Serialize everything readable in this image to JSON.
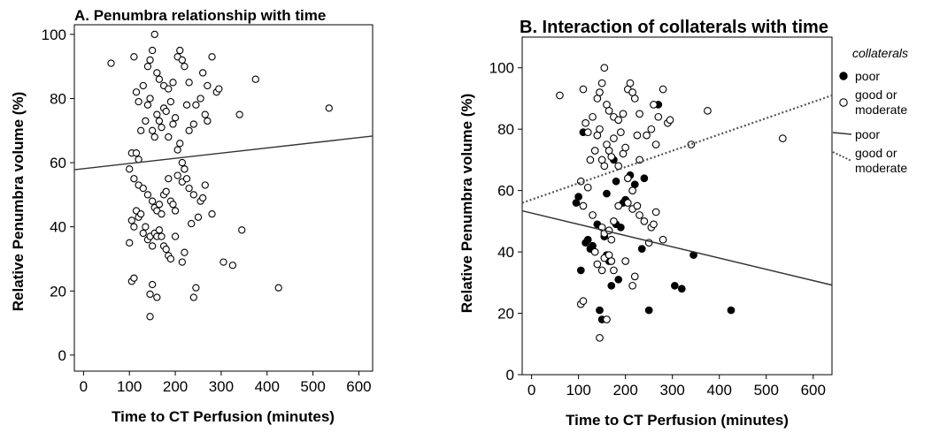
{
  "chart_data": [
    {
      "type": "scatter",
      "title": "A. Penumbra relationship with time",
      "xlabel": "Time to CT Perfusion (minutes)",
      "ylabel": "Relative Penumbra volume (%)",
      "xlim": [
        -20,
        630
      ],
      "ylim": [
        -5,
        103
      ],
      "xticks": [
        0,
        100,
        200,
        300,
        400,
        500,
        600
      ],
      "yticks": [
        0,
        20,
        40,
        60,
        80,
        100
      ],
      "grid": false,
      "points": [
        [
          60,
          91
        ],
        [
          110,
          93
        ],
        [
          115,
          82
        ],
        [
          120,
          79
        ],
        [
          130,
          84
        ],
        [
          140,
          90
        ],
        [
          145,
          92
        ],
        [
          150,
          95
        ],
        [
          155,
          100
        ],
        [
          160,
          88
        ],
        [
          165,
          86
        ],
        [
          175,
          84
        ],
        [
          185,
          83
        ],
        [
          195,
          85
        ],
        [
          205,
          93
        ],
        [
          210,
          95
        ],
        [
          215,
          92
        ],
        [
          220,
          90
        ],
        [
          230,
          85
        ],
        [
          260,
          88
        ],
        [
          270,
          84
        ],
        [
          280,
          93
        ],
        [
          290,
          82
        ],
        [
          295,
          83
        ],
        [
          375,
          86
        ],
        [
          340,
          75
        ],
        [
          535,
          77
        ],
        [
          100,
          58
        ],
        [
          105,
          63
        ],
        [
          115,
          63
        ],
        [
          120,
          61
        ],
        [
          125,
          70
        ],
        [
          135,
          73
        ],
        [
          140,
          78
        ],
        [
          145,
          80
        ],
        [
          150,
          70
        ],
        [
          155,
          68
        ],
        [
          160,
          75
        ],
        [
          165,
          73
        ],
        [
          170,
          71
        ],
        [
          175,
          77
        ],
        [
          180,
          76
        ],
        [
          185,
          68
        ],
        [
          190,
          79
        ],
        [
          195,
          72
        ],
        [
          200,
          74
        ],
        [
          205,
          64
        ],
        [
          210,
          66
        ],
        [
          215,
          60
        ],
        [
          220,
          58
        ],
        [
          225,
          78
        ],
        [
          230,
          70
        ],
        [
          240,
          72
        ],
        [
          245,
          78
        ],
        [
          255,
          80
        ],
        [
          265,
          75
        ],
        [
          270,
          73
        ],
        [
          110,
          55
        ],
        [
          120,
          53
        ],
        [
          130,
          52
        ],
        [
          140,
          50
        ],
        [
          150,
          48
        ],
        [
          155,
          46
        ],
        [
          160,
          45
        ],
        [
          165,
          47
        ],
        [
          170,
          44
        ],
        [
          175,
          50
        ],
        [
          180,
          51
        ],
        [
          185,
          55
        ],
        [
          190,
          48
        ],
        [
          195,
          47
        ],
        [
          200,
          45
        ],
        [
          205,
          56
        ],
        [
          215,
          54
        ],
        [
          220,
          58
        ],
        [
          225,
          55
        ],
        [
          230,
          52
        ],
        [
          240,
          50
        ],
        [
          255,
          48
        ],
        [
          260,
          49
        ],
        [
          265,
          53
        ],
        [
          280,
          44
        ],
        [
          100,
          35
        ],
        [
          105,
          42
        ],
        [
          110,
          40
        ],
        [
          115,
          45
        ],
        [
          120,
          43
        ],
        [
          125,
          44
        ],
        [
          130,
          38
        ],
        [
          135,
          40
        ],
        [
          140,
          36
        ],
        [
          145,
          37
        ],
        [
          150,
          34
        ],
        [
          155,
          38
        ],
        [
          160,
          37
        ],
        [
          165,
          39
        ],
        [
          170,
          37
        ],
        [
          175,
          34
        ],
        [
          180,
          33
        ],
        [
          185,
          31
        ],
        [
          190,
          30
        ],
        [
          200,
          37
        ],
        [
          220,
          32
        ],
        [
          235,
          41
        ],
        [
          250,
          43
        ],
        [
          345,
          39
        ],
        [
          105,
          23
        ],
        [
          110,
          24
        ],
        [
          145,
          19
        ],
        [
          150,
          22
        ],
        [
          160,
          18
        ],
        [
          215,
          29
        ],
        [
          240,
          18
        ],
        [
          245,
          21
        ],
        [
          305,
          29
        ],
        [
          325,
          28
        ],
        [
          425,
          21
        ],
        [
          145,
          12
        ]
      ],
      "fit_line": {
        "x": [
          -20,
          630
        ],
        "y": [
          57.8,
          68.3
        ]
      }
    },
    {
      "type": "scatter",
      "title": "B. Interaction of collaterals with time",
      "xlabel": "Time to CT Perfusion (minutes)",
      "ylabel": "Relative Penumbra volume (%)",
      "xlim": [
        -20,
        640
      ],
      "ylim": [
        0,
        110
      ],
      "xticks": [
        0,
        100,
        200,
        300,
        400,
        500,
        600
      ],
      "yticks": [
        0,
        20,
        40,
        60,
        80,
        100
      ],
      "grid": false,
      "legend": {
        "title": "collaterals",
        "position": "right",
        "marker_items": [
          {
            "label": "poor",
            "marker": "filled-circle"
          },
          {
            "label": "good or moderate",
            "marker": "open-circle"
          }
        ],
        "line_items": [
          {
            "label": "poor",
            "style": "solid"
          },
          {
            "label": "good or moderate",
            "style": "dotted"
          }
        ]
      },
      "series": [
        {
          "name": "poor",
          "marker": "filled",
          "points": [
            [
              95,
              56
            ],
            [
              100,
              58
            ],
            [
              110,
              79
            ],
            [
              115,
              43
            ],
            [
              120,
              44
            ],
            [
              125,
              41
            ],
            [
              130,
              42
            ],
            [
              140,
              49
            ],
            [
              145,
              21
            ],
            [
              150,
              18
            ],
            [
              155,
              45
            ],
            [
              160,
              39
            ],
            [
              165,
              37
            ],
            [
              170,
              29
            ],
            [
              175,
              70
            ],
            [
              180,
              49
            ],
            [
              185,
              31
            ],
            [
              190,
              48
            ],
            [
              195,
              56
            ],
            [
              200,
              57
            ],
            [
              210,
              65
            ],
            [
              220,
              62
            ],
            [
              235,
              41
            ],
            [
              240,
              64
            ],
            [
              250,
              21
            ],
            [
              270,
              88
            ],
            [
              305,
              29
            ],
            [
              320,
              28
            ],
            [
              345,
              39
            ],
            [
              425,
              21
            ],
            [
              105,
              34
            ],
            [
              160,
              59
            ],
            [
              180,
              63
            ]
          ]
        },
        {
          "name": "good or moderate",
          "marker": "open",
          "points": [
            [
              60,
              91
            ],
            [
              110,
              93
            ],
            [
              115,
              82
            ],
            [
              120,
              79
            ],
            [
              130,
              84
            ],
            [
              140,
              90
            ],
            [
              145,
              92
            ],
            [
              150,
              95
            ],
            [
              155,
              100
            ],
            [
              160,
              88
            ],
            [
              165,
              86
            ],
            [
              175,
              84
            ],
            [
              185,
              83
            ],
            [
              195,
              85
            ],
            [
              205,
              93
            ],
            [
              210,
              95
            ],
            [
              215,
              92
            ],
            [
              220,
              90
            ],
            [
              230,
              85
            ],
            [
              260,
              88
            ],
            [
              270,
              84
            ],
            [
              280,
              93
            ],
            [
              290,
              82
            ],
            [
              295,
              83
            ],
            [
              375,
              86
            ],
            [
              340,
              75
            ],
            [
              535,
              77
            ],
            [
              105,
              63
            ],
            [
              120,
              61
            ],
            [
              125,
              70
            ],
            [
              135,
              73
            ],
            [
              140,
              78
            ],
            [
              145,
              80
            ],
            [
              150,
              70
            ],
            [
              155,
              68
            ],
            [
              160,
              75
            ],
            [
              165,
              73
            ],
            [
              170,
              71
            ],
            [
              175,
              77
            ],
            [
              185,
              68
            ],
            [
              190,
              79
            ],
            [
              195,
              72
            ],
            [
              200,
              74
            ],
            [
              205,
              64
            ],
            [
              215,
              60
            ],
            [
              225,
              78
            ],
            [
              230,
              70
            ],
            [
              245,
              78
            ],
            [
              255,
              80
            ],
            [
              265,
              75
            ],
            [
              110,
              55
            ],
            [
              130,
              52
            ],
            [
              150,
              48
            ],
            [
              155,
              46
            ],
            [
              165,
              47
            ],
            [
              170,
              44
            ],
            [
              175,
              50
            ],
            [
              185,
              55
            ],
            [
              205,
              56
            ],
            [
              215,
              54
            ],
            [
              225,
              55
            ],
            [
              230,
              52
            ],
            [
              240,
              50
            ],
            [
              255,
              48
            ],
            [
              260,
              49
            ],
            [
              265,
              53
            ],
            [
              280,
              44
            ],
            [
              135,
              40
            ],
            [
              140,
              36
            ],
            [
              150,
              34
            ],
            [
              155,
              38
            ],
            [
              165,
              39
            ],
            [
              170,
              37
            ],
            [
              175,
              34
            ],
            [
              200,
              37
            ],
            [
              220,
              32
            ],
            [
              250,
              43
            ],
            [
              105,
              23
            ],
            [
              110,
              24
            ],
            [
              160,
              18
            ],
            [
              215,
              29
            ],
            [
              145,
              12
            ]
          ]
        }
      ],
      "fit_lines": [
        {
          "name": "poor",
          "style": "solid",
          "x": [
            -20,
            640
          ],
          "y": [
            53.4,
            29.2
          ]
        },
        {
          "name": "good or moderate",
          "style": "dotted",
          "x": [
            -20,
            640
          ],
          "y": [
            56.0,
            91.0
          ]
        }
      ]
    }
  ]
}
